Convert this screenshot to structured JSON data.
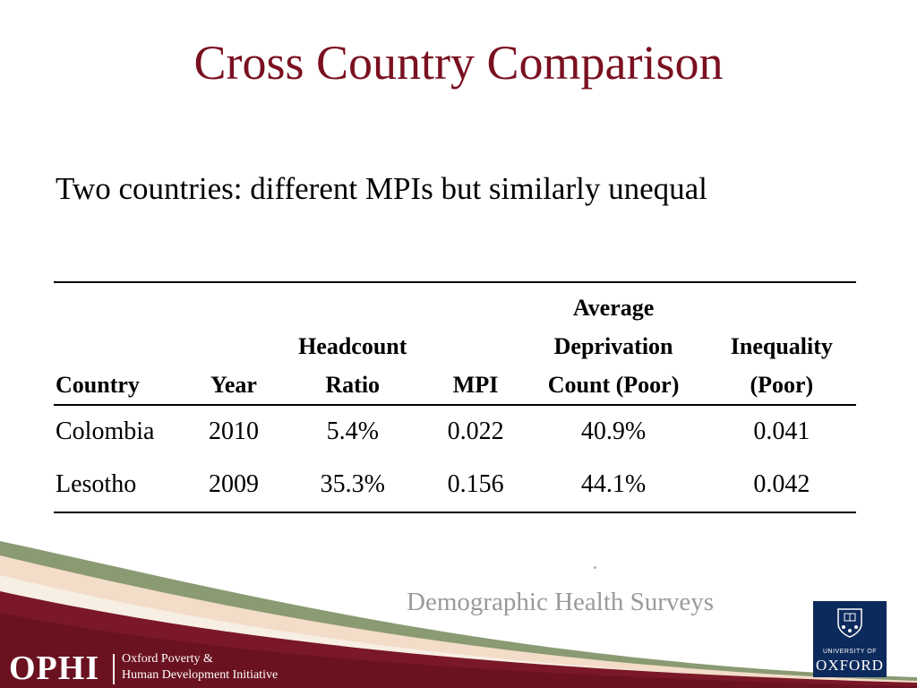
{
  "slide": {
    "title": "Cross Country Comparison",
    "subtitle": "Two countries: different MPIs but similarly unequal"
  },
  "table": {
    "headers": [
      [
        "Country"
      ],
      [
        "Year"
      ],
      [
        "Headcount",
        "Ratio"
      ],
      [
        "MPI"
      ],
      [
        "Average",
        "Deprivation",
        "Count (Poor)"
      ],
      [
        "Inequality",
        "(Poor)"
      ]
    ],
    "rows": [
      [
        "Colombia",
        "2010",
        "5.4%",
        "0.022",
        "40.9%",
        "0.041"
      ],
      [
        "Lesotho",
        "2009",
        "35.3%",
        "0.156",
        "44.1%",
        "0.042"
      ]
    ]
  },
  "source": "Demographic Health Surveys",
  "footer": {
    "logo_text": "OPHI",
    "org_line1": "Oxford Poverty &",
    "org_line2": "Human Development Initiative",
    "university_small": "UNIVERSITY OF",
    "university_name": "OXFORD"
  },
  "colors": {
    "title": "#7a1020",
    "maroon_band": "#7a1828",
    "green_band": "#8a9a72",
    "oxford_blue": "#0d2a5c"
  }
}
